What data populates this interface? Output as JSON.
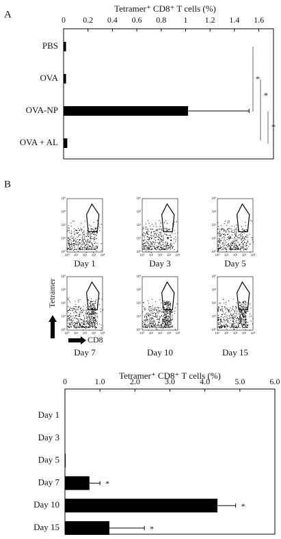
{
  "panel_labels": [
    "A",
    "B"
  ],
  "chart_data": [
    {
      "type": "bar",
      "orientation": "horizontal",
      "title": "Tetramer⁺ CD8⁺ T cells (%)",
      "categories": [
        "PBS",
        "OVA",
        "OVA-NP",
        "OVA + AL"
      ],
      "values": [
        0.02,
        0.02,
        1.02,
        0.03
      ],
      "errors": [
        0,
        0,
        0.5,
        0
      ],
      "color": "#000000",
      "xlim": [
        0,
        1.72
      ],
      "xticks": [
        0,
        0.2,
        0.4,
        0.6,
        0.8,
        1,
        1.2,
        1.4,
        1.6
      ],
      "annotations": [
        "*",
        "*",
        "*"
      ]
    },
    {
      "type": "bar",
      "orientation": "horizontal",
      "title": "Tetramer⁺ CD8⁺ T cells (%)",
      "categories": [
        "Day 1",
        "Day 3",
        "Day 5",
        "Day 7",
        "Day 10",
        "Day 15"
      ],
      "values": [
        0,
        0,
        0.02,
        0.7,
        4.36,
        1.27
      ],
      "errors": [
        0,
        0,
        0,
        0.3,
        0.52,
        1.0
      ],
      "color": "#000000",
      "xlim": [
        0,
        6
      ],
      "xticks": [
        0,
        {
          "value": 1,
          "label": "1.0"
        },
        {
          "value": 2,
          "label": "2.0"
        },
        {
          "value": 3,
          "label": "3.0"
        },
        {
          "value": 4,
          "label": "4.0"
        },
        {
          "value": 5,
          "label": "5.0"
        },
        {
          "value": 6,
          "label": "6.0"
        }
      ],
      "annotations": [
        "*",
        "*",
        "*"
      ]
    }
  ],
  "flow": {
    "days": [
      "Day 1",
      "Day 3",
      "Day 5",
      "Day 7",
      "Day 10",
      "Day 15"
    ],
    "y_label": "Tetramer",
    "x_label": "CD8",
    "ticks": [
      "10⁰",
      "10¹",
      "10²",
      "10³",
      "10⁴"
    ]
  }
}
